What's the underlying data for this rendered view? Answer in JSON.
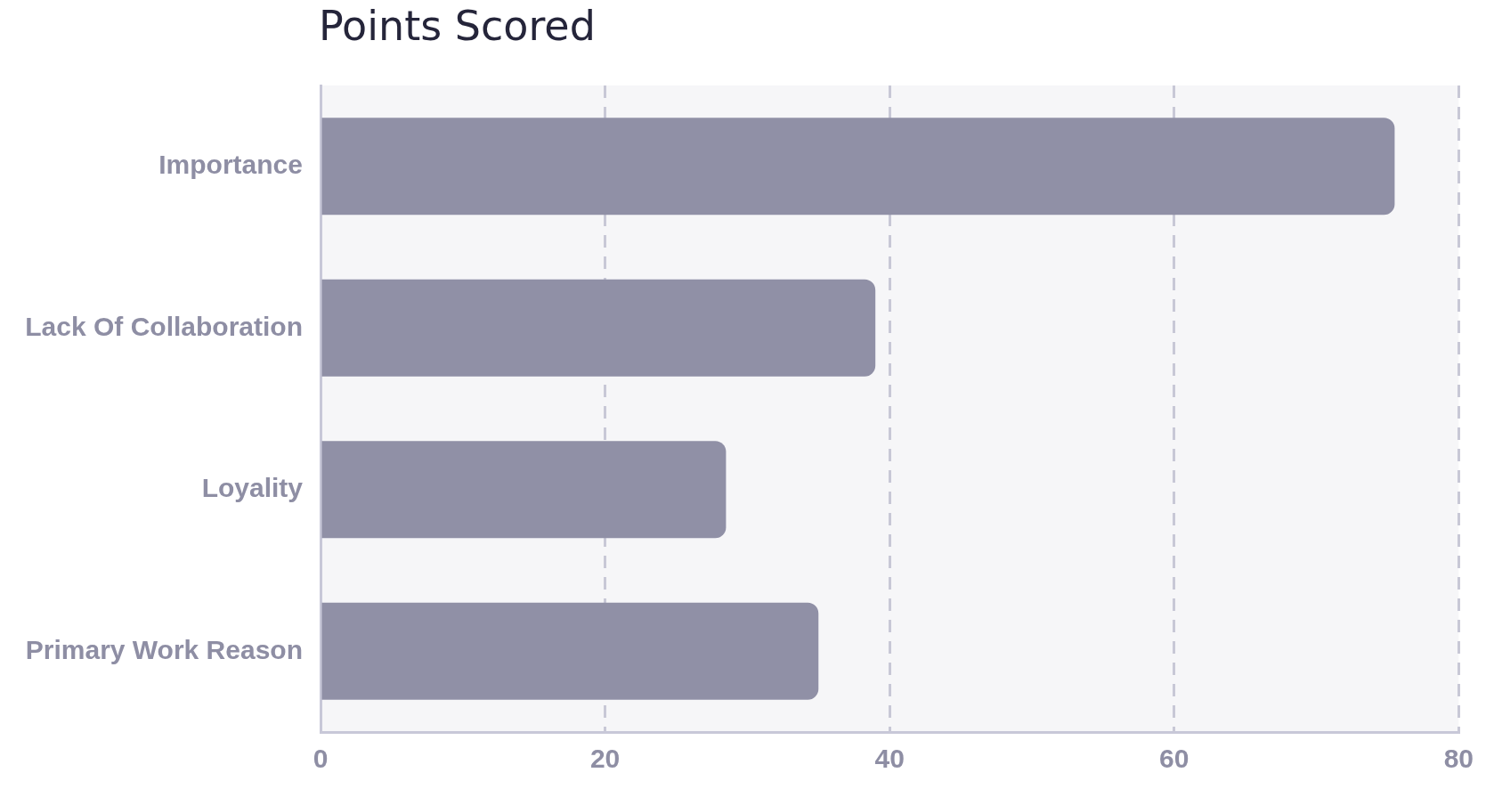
{
  "chart_data": {
    "type": "bar",
    "orientation": "horizontal",
    "title": "Points Scored",
    "categories": [
      "Importance",
      "Lack Of Collaboration",
      "Loyality",
      "Primary Work Reason"
    ],
    "values": [
      75.5,
      39,
      28.5,
      35
    ],
    "color": "#9090a6",
    "xlim": [
      0,
      80
    ],
    "xticks": [
      0,
      20,
      40,
      60,
      80
    ],
    "grid": "x",
    "legend": false
  }
}
